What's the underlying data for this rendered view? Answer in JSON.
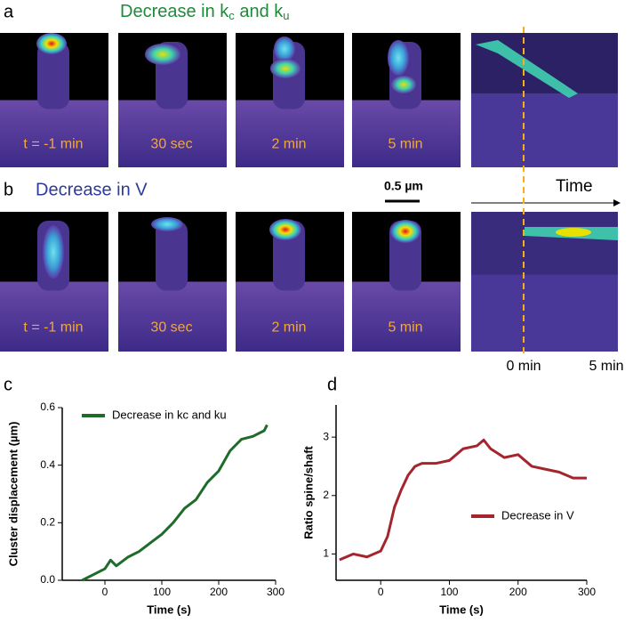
{
  "panel_labels": [
    "a",
    "b",
    "c",
    "d"
  ],
  "row_a": {
    "title": [
      "Decrease in k",
      "c",
      " and k",
      "u"
    ],
    "frame_labels": [
      "t = -1 min",
      "30 sec",
      "2 min",
      "5 min"
    ]
  },
  "row_b": {
    "title": "Decrease in V",
    "frame_labels": [
      "t = -1 min",
      "30 sec",
      "2 min",
      "5 min"
    ]
  },
  "scale_bar": "0.5 µm",
  "kymograph": {
    "axis_label": "Time",
    "start": "0 min",
    "end": "5 min"
  },
  "chart_data": [
    {
      "type": "line",
      "xlabel": "Time (s)",
      "ylabel": "Cluster displacement (µm)",
      "xlim": [
        -75,
        300
      ],
      "xticks": [
        0,
        100,
        200,
        300
      ],
      "ylim": [
        0,
        0.6
      ],
      "yticks": [
        {
          "value": 0,
          "label": "0.0"
        },
        0.2,
        0.4,
        0.6
      ],
      "legend": "upper left",
      "x": [
        -40,
        -20,
        0,
        10,
        20,
        40,
        60,
        80,
        100,
        120,
        140,
        160,
        180,
        200,
        220,
        240,
        260,
        280,
        285
      ],
      "series": [
        {
          "name": "Decrease in kc and ku",
          "color": "#1e6b2a",
          "values": [
            0,
            0.02,
            0.04,
            0.07,
            0.05,
            0.08,
            0.1,
            0.13,
            0.16,
            0.2,
            0.25,
            0.28,
            0.34,
            0.38,
            0.45,
            0.49,
            0.5,
            0.52,
            0.54
          ]
        }
      ]
    },
    {
      "type": "line",
      "xlabel": "Time (s)",
      "ylabel": "Ratio spine/shaft",
      "xlim": [
        -65,
        300
      ],
      "xticks": [
        0,
        100,
        200,
        300
      ],
      "ylim": [
        0.55,
        3.55
      ],
      "yticks": [
        1,
        2,
        3
      ],
      "legend": "lower right",
      "x": [
        -60,
        -40,
        -20,
        0,
        10,
        20,
        30,
        40,
        50,
        60,
        80,
        100,
        120,
        140,
        150,
        160,
        180,
        200,
        220,
        240,
        260,
        280,
        300
      ],
      "series": [
        {
          "name": "Decrease in V",
          "color": "#a4262c",
          "values": [
            0.9,
            1.0,
            0.95,
            1.05,
            1.3,
            1.8,
            2.1,
            2.35,
            2.5,
            2.55,
            2.55,
            2.6,
            2.8,
            2.85,
            2.95,
            2.8,
            2.65,
            2.7,
            2.5,
            2.45,
            2.4,
            2.3,
            2.3
          ]
        }
      ]
    }
  ]
}
